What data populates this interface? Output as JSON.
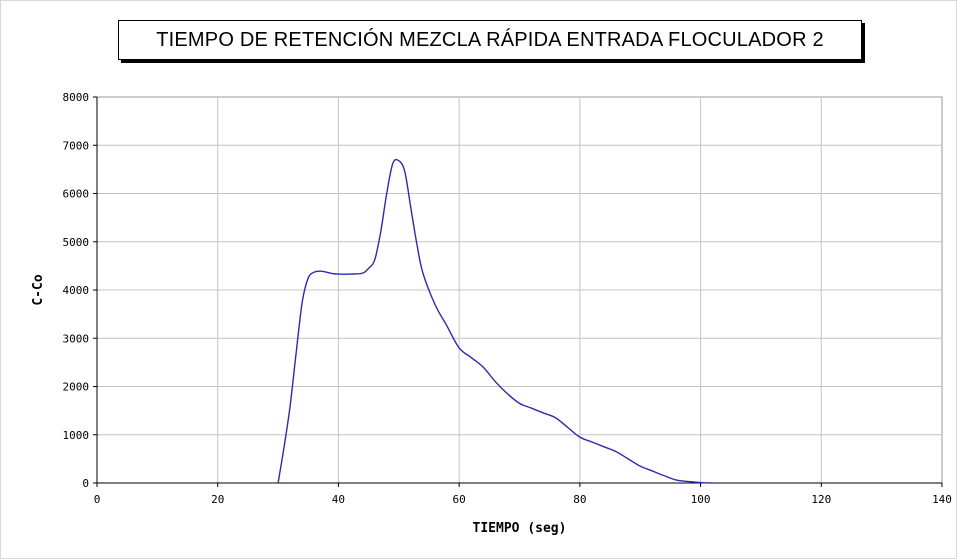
{
  "chart_data": {
    "type": "line",
    "title": "TIEMPO DE RETENCIÓN MEZCLA RÁPIDA ENTRADA FLOCULADOR 2",
    "xlabel": "TIEMPO (seg)",
    "ylabel": "C-Co",
    "xlim": [
      0,
      140
    ],
    "ylim": [
      0,
      8000
    ],
    "xticks": [
      "0",
      "20",
      "40",
      "60",
      "80",
      "100",
      "120",
      "140"
    ],
    "yticks": [
      "0",
      "1000",
      "2000",
      "3000",
      "4000",
      "5000",
      "6000",
      "7000",
      "8000"
    ],
    "grid": true,
    "series_color": "#2b2bb0",
    "series": [
      {
        "x": [
          30,
          31,
          32,
          33,
          34,
          35,
          36,
          37,
          38,
          39,
          40,
          42,
          44,
          45,
          46,
          47,
          48,
          49,
          50,
          51,
          52,
          53,
          54,
          56,
          58,
          60,
          62,
          64,
          66,
          68,
          70,
          72,
          74,
          76,
          78,
          80,
          82,
          84,
          86,
          88,
          90,
          92,
          94,
          96,
          98,
          100,
          102
        ],
        "y": [
          0,
          750,
          1600,
          2700,
          3750,
          4250,
          4370,
          4390,
          4370,
          4340,
          4330,
          4330,
          4350,
          4450,
          4620,
          5200,
          6000,
          6620,
          6680,
          6450,
          5700,
          4950,
          4350,
          3700,
          3250,
          2800,
          2600,
          2400,
          2100,
          1850,
          1650,
          1550,
          1450,
          1350,
          1150,
          950,
          850,
          750,
          650,
          500,
          350,
          250,
          150,
          60,
          30,
          10,
          0
        ]
      }
    ]
  }
}
